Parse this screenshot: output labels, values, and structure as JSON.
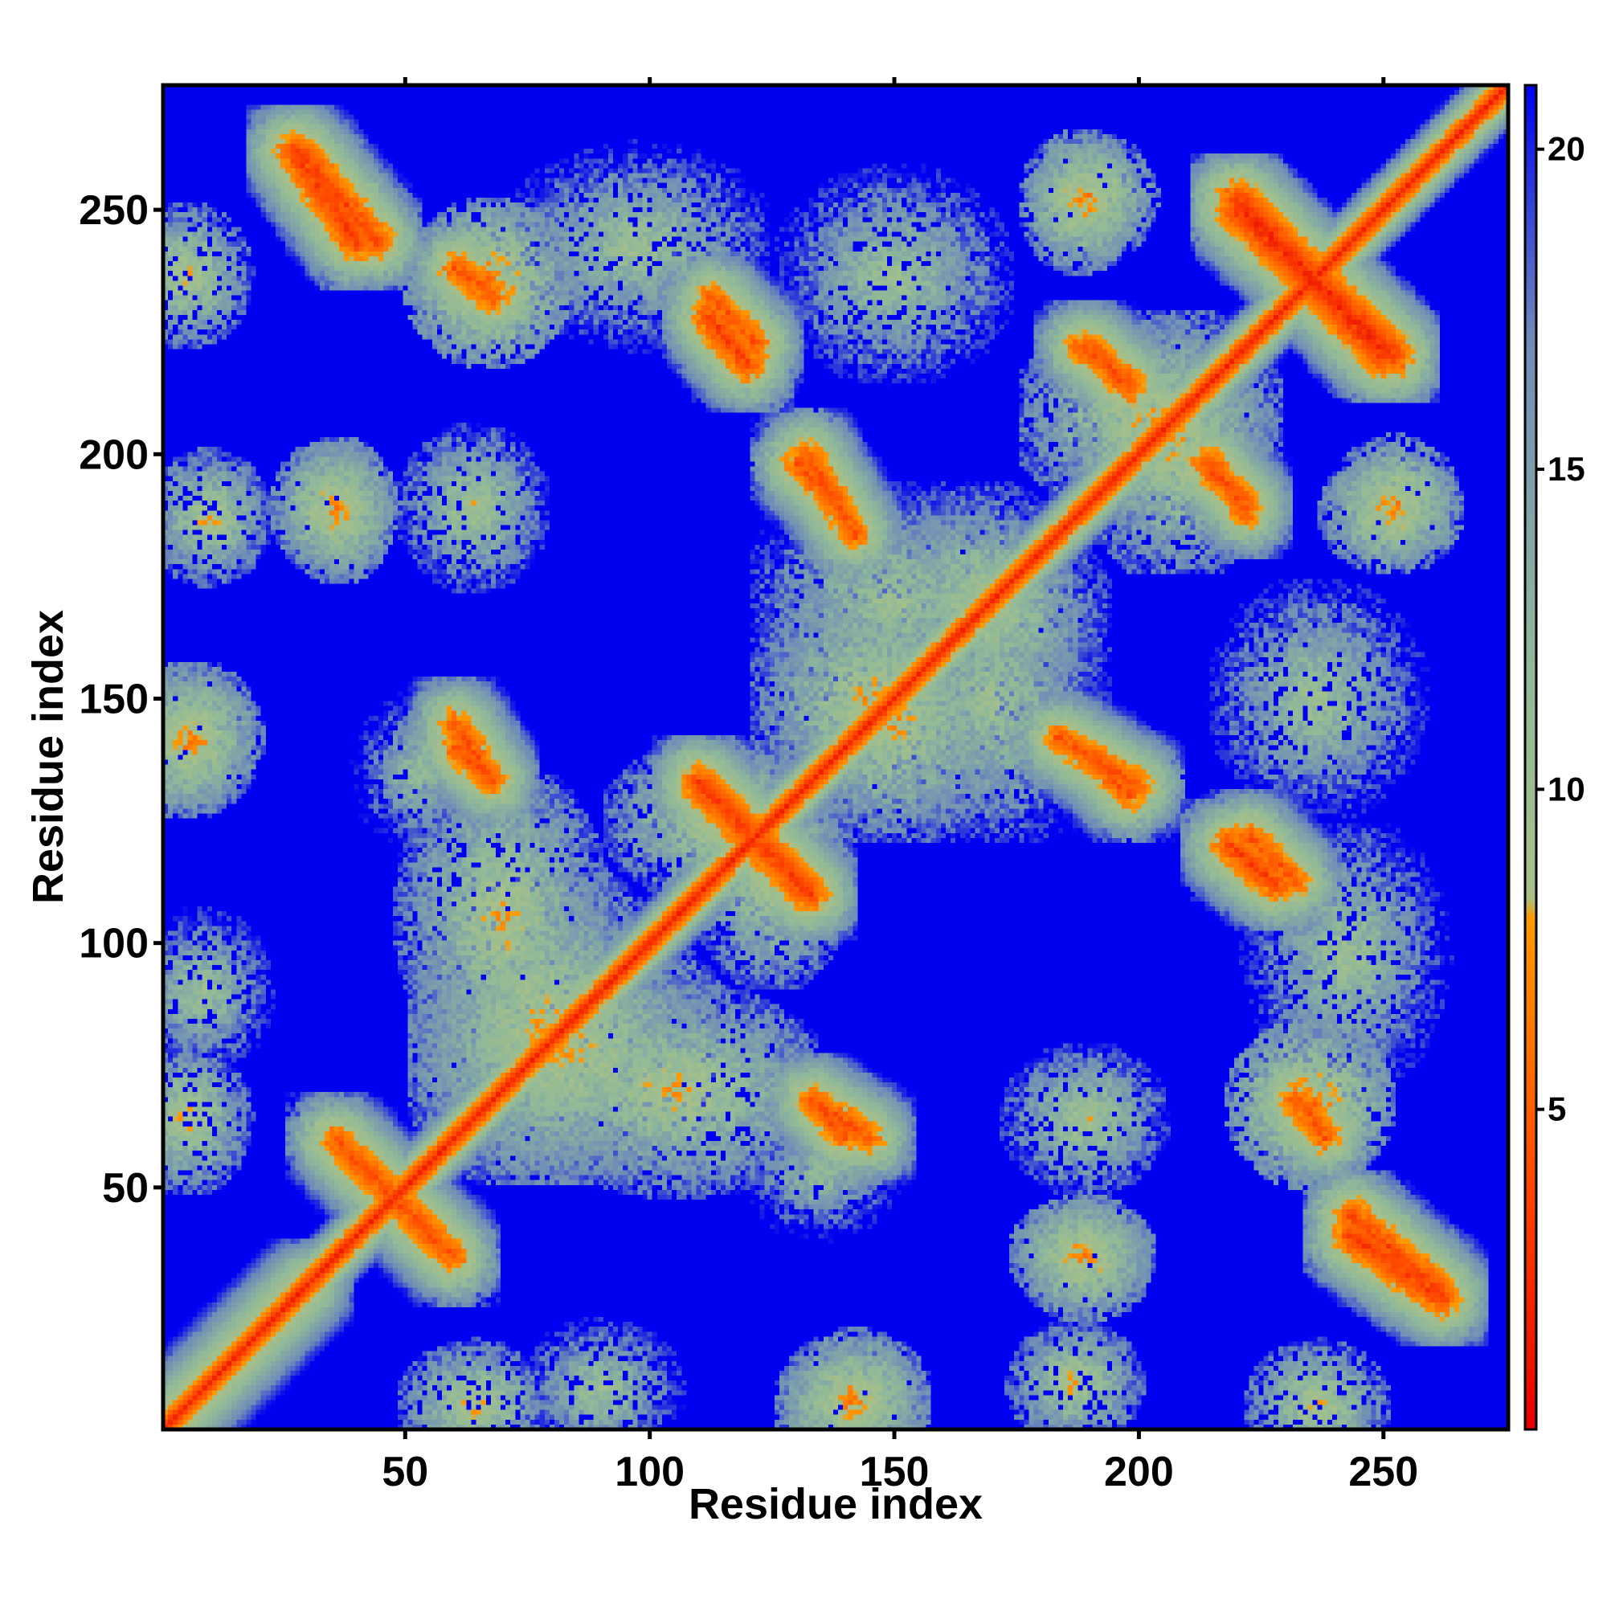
{
  "chart_data": {
    "type": "heatmap",
    "title": "",
    "xlabel": "Residue index",
    "ylabel": "Residue index",
    "n_residues": 275,
    "xlim": [
      0.5,
      275.5
    ],
    "ylim": [
      0.5,
      275.5
    ],
    "x_ticks": [
      50,
      100,
      150,
      200,
      250
    ],
    "y_ticks": [
      50,
      100,
      150,
      200,
      250
    ],
    "x_tick_labels": [
      "50",
      "100",
      "150",
      "200",
      "250"
    ],
    "y_tick_labels": [
      "50",
      "100",
      "150",
      "200",
      "250"
    ],
    "grid": false,
    "colorbar": {
      "position": "right",
      "range": [
        0,
        21
      ],
      "ticks": [
        5,
        10,
        15,
        20
      ],
      "tick_labels": [
        "5",
        "10",
        "15",
        "20"
      ],
      "colors": [
        {
          "value": 0,
          "color": "#e60000"
        },
        {
          "value": 4,
          "color": "#ff4a00"
        },
        {
          "value": 8,
          "color": "#ff9a00"
        },
        {
          "value": 8.3,
          "color": "#a8c088"
        },
        {
          "value": 12,
          "color": "#8fb89a"
        },
        {
          "value": 17,
          "color": "#6f8cb8"
        },
        {
          "value": 21,
          "color": "#0000f0"
        }
      ]
    },
    "background_value": 21,
    "diagonal_value": 2,
    "diagonal_width": 3.5,
    "contact_features": [
      {
        "type": "anti",
        "x": [
          35,
          58
        ],
        "y": [
          60,
          37
        ],
        "value": 5
      },
      {
        "type": "anti",
        "x": [
          27,
          40
        ],
        "y": [
          262,
          243
        ],
        "value": 4
      },
      {
        "type": "anti",
        "x": [
          60,
          68
        ],
        "y": [
          140,
          133
        ],
        "value": 5
      },
      {
        "type": "anti",
        "x": [
          110,
          132
        ],
        "y": [
          133,
          110
        ],
        "value": 4
      },
      {
        "type": "anti",
        "x": [
          134,
          145
        ],
        "y": [
          67,
          60
        ],
        "value": 5
      },
      {
        "type": "anti",
        "x": [
          132,
          142
        ],
        "y": [
          200,
          183
        ],
        "value": 5
      },
      {
        "type": "anti",
        "x": [
          112,
          120
        ],
        "y": [
          228,
          218
        ],
        "value": 4
      },
      {
        "type": "anti",
        "x": [
          190,
          198
        ],
        "y": [
          138,
          130
        ],
        "value": 5
      },
      {
        "type": "anti",
        "x": [
          190,
          198
        ],
        "y": [
          222,
          213
        ],
        "value": 5
      },
      {
        "type": "anti",
        "x": [
          215,
          222
        ],
        "y": [
          198,
          188
        ],
        "value": 5
      },
      {
        "type": "anti",
        "x": [
          220,
          250
        ],
        "y": [
          252,
          220
        ],
        "value": 3
      },
      {
        "type": "anti",
        "x": [
          222,
          232
        ],
        "y": [
          122,
          112
        ],
        "value": 5
      },
      {
        "type": "anti",
        "x": [
          243,
          262
        ],
        "y": [
          44,
          28
        ],
        "value": 4
      },
      {
        "type": "anti",
        "x": [
          232,
          238
        ],
        "y": [
          68,
          60
        ],
        "value": 5
      },
      {
        "type": "para",
        "x": [
          3,
          30
        ],
        "y": [
          3,
          30
        ],
        "value": 6
      },
      {
        "type": "blob",
        "x": [
          62,
          72
        ],
        "y": [
          230,
          240
        ],
        "value": 6
      },
      {
        "type": "blob",
        "x": [
          35,
          38
        ],
        "y": [
          185,
          192
        ],
        "value": 7
      },
      {
        "type": "blob",
        "x": [
          186,
          190
        ],
        "y": [
          248,
          255
        ],
        "value": 7
      },
      {
        "type": "blob",
        "x": [
          250,
          255
        ],
        "y": [
          188,
          193
        ],
        "value": 7
      },
      {
        "type": "blob",
        "x": [
          186,
          192
        ],
        "y": [
          33,
          38
        ],
        "value": 7
      },
      {
        "type": "blob",
        "x": [
          137,
          145
        ],
        "y": [
          3,
          8
        ],
        "value": 7
      },
      {
        "type": "blob",
        "x": [
          60,
          68
        ],
        "y": [
          3,
          8
        ],
        "value": 8
      },
      {
        "type": "blob",
        "x": [
          4,
          10
        ],
        "y": [
          138,
          146
        ],
        "value": 7
      },
      {
        "type": "blob",
        "x": [
          3,
          8
        ],
        "y": [
          233,
          240
        ],
        "value": 8
      },
      {
        "type": "blob",
        "x": [
          8,
          12
        ],
        "y": [
          184,
          190
        ],
        "value": 8
      },
      {
        "type": "blob",
        "x": [
          60,
          68
        ],
        "y": [
          184,
          194
        ],
        "value": 9
      },
      {
        "type": "blob",
        "x": [
          67,
          90
        ],
        "y": [
          65,
          100
        ],
        "value": 8
      },
      {
        "type": "blob",
        "x": [
          90,
          120
        ],
        "y": [
          62,
          78
        ],
        "value": 8
      },
      {
        "type": "blob",
        "x": [
          140,
          160
        ],
        "y": [
          135,
          155
        ],
        "value": 8
      },
      {
        "type": "blob",
        "x": [
          160,
          175
        ],
        "y": [
          160,
          180
        ],
        "value": 9
      },
      {
        "type": "blob",
        "x": [
          120,
          130
        ],
        "y": [
          105,
          125
        ],
        "value": 8
      },
      {
        "type": "blob",
        "x": [
          200,
          215
        ],
        "y": [
          190,
          215
        ],
        "value": 8
      },
      {
        "type": "blob",
        "x": [
          228,
          245
        ],
        "y": [
          140,
          160
        ],
        "value": 10
      },
      {
        "type": "blob",
        "x": [
          235,
          250
        ],
        "y": [
          85,
          110
        ],
        "value": 10
      },
      {
        "type": "blob",
        "x": [
          160,
          180
        ],
        "y": [
          135,
          165
        ],
        "value": 10
      },
      {
        "type": "blob",
        "x": [
          85,
          95
        ],
        "y": [
          5,
          12
        ],
        "value": 10
      },
      {
        "type": "blob",
        "x": [
          50,
          55
        ],
        "y": [
          130,
          140
        ],
        "value": 11
      }
    ]
  }
}
